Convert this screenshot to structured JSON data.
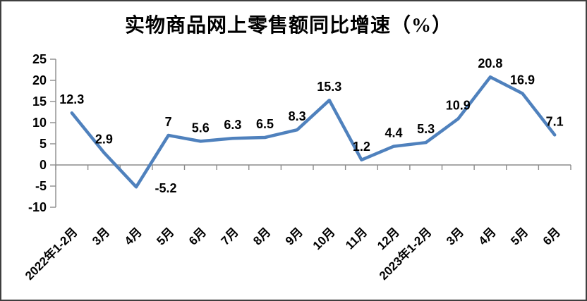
{
  "chart_data": {
    "type": "line",
    "title": "实物商品网上零售额同比增速（%）",
    "categories": [
      "2022年1-2月",
      "3月",
      "4月",
      "5月",
      "6月",
      "7月",
      "8月",
      "9月",
      "10月",
      "11月",
      "12月",
      "2023年1-2月",
      "3月",
      "4月",
      "5月",
      "6月"
    ],
    "values": [
      12.3,
      2.9,
      -5.2,
      7,
      5.6,
      6.3,
      6.5,
      8.3,
      15.3,
      1.2,
      4.4,
      5.3,
      10.9,
      20.8,
      16.9,
      7.1
    ],
    "labels": [
      "12.3",
      "2.9",
      "-5.2",
      "7",
      "5.6",
      "6.3",
      "6.5",
      "8.3",
      "15.3",
      "1.2",
      "4.4",
      "5.3",
      "10.9",
      "20.8",
      "16.9",
      "7.1"
    ],
    "xlabel": "",
    "ylabel": "",
    "ylim": [
      -10,
      25
    ],
    "yticks": [
      25,
      20,
      15,
      10,
      5,
      0,
      -5,
      -10
    ],
    "grid": false,
    "legend_position": "none",
    "colors": {
      "line": "#4F81BD",
      "axis": "#8C8C8C",
      "text": "#000000",
      "background": "#FFFFFF",
      "border": "#3F3F3F"
    }
  }
}
